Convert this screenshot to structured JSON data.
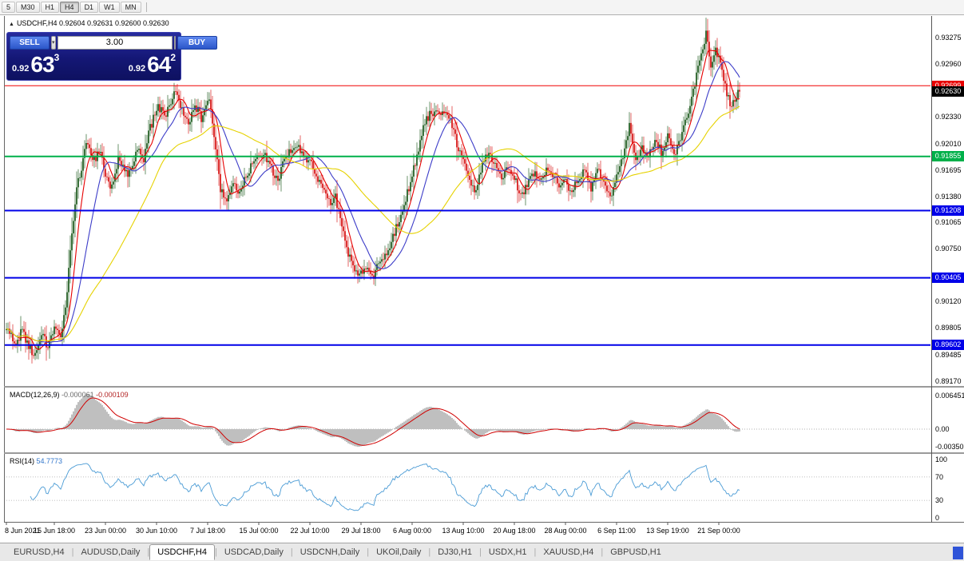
{
  "window": {
    "toolbar_timeframes": [
      "5",
      "M30",
      "H1",
      "H4",
      "D1",
      "W1",
      "MN"
    ],
    "active_timeframe": "H4"
  },
  "icons": {
    "collapse_arrow": "▲",
    "chevron_down": "▾",
    "spinner_up": "▲",
    "spinner_down": "▼"
  },
  "chart_header": {
    "title": "USDCHF,H4 0.92604 0.92631 0.92600 0.92630"
  },
  "trade_panel": {
    "sell_button": "SELL",
    "buy_button": "BUY",
    "volume": "3.00",
    "sell_price_prefix": "0.92",
    "sell_price_big": "63",
    "sell_price_sup": "3",
    "buy_price_prefix": "0.92",
    "buy_price_big": "64",
    "buy_price_sup": "2"
  },
  "price_axis": {
    "ticks": [
      {
        "label": "0.93275",
        "price": 0.93275
      },
      {
        "label": "0.92960",
        "price": 0.9296
      },
      {
        "label": "0.92330",
        "price": 0.9233
      },
      {
        "label": "0.92010",
        "price": 0.9201
      },
      {
        "label": "0.91695",
        "price": 0.91695
      },
      {
        "label": "0.91380",
        "price": 0.9138
      },
      {
        "label": "0.91065",
        "price": 0.91065
      },
      {
        "label": "0.90750",
        "price": 0.9075
      },
      {
        "label": "0.90120",
        "price": 0.9012
      },
      {
        "label": "0.89805",
        "price": 0.89805
      },
      {
        "label": "0.89485",
        "price": 0.89485
      },
      {
        "label": "0.89170",
        "price": 0.8917
      }
    ],
    "boxes": [
      {
        "label": "0.92699",
        "price": 0.92699,
        "color": "#e80000"
      },
      {
        "label": "0.92630",
        "price": 0.9263,
        "color": "#000000"
      },
      {
        "label": "0.91855",
        "price": 0.91855,
        "color": "#00b04a"
      },
      {
        "label": "0.91208",
        "price": 0.91208,
        "color": "#0000e8"
      },
      {
        "label": "0.90405",
        "price": 0.90405,
        "color": "#0000e8"
      },
      {
        "label": "0.89602",
        "price": 0.89602,
        "color": "#0000e8"
      }
    ]
  },
  "indicators": {
    "macd": {
      "name": "MACD(12,26,9)",
      "value_main": "-0.000061",
      "value_signal": "-0.000109",
      "axis_top": "0.006451",
      "axis_zero": "0.00",
      "axis_bottom": "-0.00350"
    },
    "rsi": {
      "name": "RSI(14)",
      "value": "54.7773",
      "axis": [
        "100",
        "70",
        "30",
        "0"
      ]
    }
  },
  "tab_bar": {
    "tabs": [
      "EURUSD,H4",
      "AUDUSD,Daily",
      "USDCHF,H4",
      "USDCAD,Daily",
      "USDCNH,Daily",
      "UKOil,Daily",
      "DJ30,H1",
      "USDX,H1",
      "XAUUSD,H4",
      "GBPUSD,H1"
    ],
    "active": "USDCHF,H4"
  },
  "chart_data": {
    "type": "candlestick",
    "symbol": "USDCHF",
    "timeframe": "H4",
    "title_ohlc": {
      "open": "0.92604",
      "high": "0.92631",
      "low": "0.92600",
      "close": "0.92630"
    },
    "quote": {
      "bid": 0.92633,
      "ask": 0.92642,
      "last": 0.9263
    },
    "bars": 460,
    "y_range": {
      "top_price": 0.93275,
      "bottom_price": 0.8917
    },
    "price_anchors": [
      [
        0,
        0.8978
      ],
      [
        6,
        0.8961
      ],
      [
        10,
        0.8979
      ],
      [
        14,
        0.8958
      ],
      [
        18,
        0.8946
      ],
      [
        22,
        0.8972
      ],
      [
        26,
        0.8959
      ],
      [
        30,
        0.8982
      ],
      [
        34,
        0.8965
      ],
      [
        37,
        0.9005
      ],
      [
        40,
        0.9075
      ],
      [
        44,
        0.9148
      ],
      [
        47,
        0.9172
      ],
      [
        50,
        0.9205
      ],
      [
        54,
        0.9176
      ],
      [
        58,
        0.9193
      ],
      [
        62,
        0.9166
      ],
      [
        66,
        0.9147
      ],
      [
        70,
        0.918
      ],
      [
        76,
        0.9161
      ],
      [
        82,
        0.9196
      ],
      [
        86,
        0.9182
      ],
      [
        90,
        0.9221
      ],
      [
        95,
        0.9243
      ],
      [
        100,
        0.9238
      ],
      [
        106,
        0.9268
      ],
      [
        110,
        0.9242
      ],
      [
        114,
        0.9226
      ],
      [
        118,
        0.9247
      ],
      [
        122,
        0.9232
      ],
      [
        127,
        0.9258
      ],
      [
        131,
        0.9199
      ],
      [
        134,
        0.9147
      ],
      [
        138,
        0.9131
      ],
      [
        142,
        0.9156
      ],
      [
        146,
        0.9141
      ],
      [
        150,
        0.9161
      ],
      [
        154,
        0.9176
      ],
      [
        158,
        0.9191
      ],
      [
        162,
        0.9186
      ],
      [
        166,
        0.9171
      ],
      [
        170,
        0.9157
      ],
      [
        174,
        0.9181
      ],
      [
        179,
        0.9196
      ],
      [
        183,
        0.9201
      ],
      [
        186,
        0.9181
      ],
      [
        190,
        0.9186
      ],
      [
        194,
        0.9161
      ],
      [
        198,
        0.9151
      ],
      [
        202,
        0.9131
      ],
      [
        206,
        0.9136
      ],
      [
        210,
        0.9101
      ],
      [
        214,
        0.9071
      ],
      [
        218,
        0.9051
      ],
      [
        222,
        0.9046
      ],
      [
        226,
        0.9053
      ],
      [
        230,
        0.9043
      ],
      [
        234,
        0.9061
      ],
      [
        238,
        0.9071
      ],
      [
        242,
        0.9091
      ],
      [
        246,
        0.9111
      ],
      [
        250,
        0.9136
      ],
      [
        254,
        0.9161
      ],
      [
        258,
        0.9196
      ],
      [
        262,
        0.9226
      ],
      [
        266,
        0.9238
      ],
      [
        270,
        0.9234
      ],
      [
        274,
        0.9241
      ],
      [
        278,
        0.9226
      ],
      [
        282,
        0.9201
      ],
      [
        286,
        0.9181
      ],
      [
        290,
        0.9156
      ],
      [
        294,
        0.9141
      ],
      [
        298,
        0.9176
      ],
      [
        302,
        0.9191
      ],
      [
        306,
        0.9176
      ],
      [
        310,
        0.9161
      ],
      [
        314,
        0.9171
      ],
      [
        318,
        0.9161
      ],
      [
        322,
        0.9136
      ],
      [
        326,
        0.9151
      ],
      [
        330,
        0.9166
      ],
      [
        334,
        0.9156
      ],
      [
        338,
        0.9171
      ],
      [
        342,
        0.9161
      ],
      [
        346,
        0.9151
      ],
      [
        350,
        0.9156
      ],
      [
        354,
        0.9141
      ],
      [
        358,
        0.9161
      ],
      [
        362,
        0.9171
      ],
      [
        366,
        0.9146
      ],
      [
        370,
        0.9166
      ],
      [
        374,
        0.9161
      ],
      [
        378,
        0.9136
      ],
      [
        382,
        0.9161
      ],
      [
        386,
        0.9186
      ],
      [
        390,
        0.9221
      ],
      [
        394,
        0.9181
      ],
      [
        398,
        0.9196
      ],
      [
        402,
        0.9186
      ],
      [
        406,
        0.9206
      ],
      [
        410,
        0.9191
      ],
      [
        414,
        0.9211
      ],
      [
        418,
        0.9186
      ],
      [
        422,
        0.9206
      ],
      [
        426,
        0.9231
      ],
      [
        430,
        0.9261
      ],
      [
        434,
        0.9301
      ],
      [
        438,
        0.9331
      ],
      [
        441,
        0.9291
      ],
      [
        444,
        0.9311
      ],
      [
        446,
        0.9301
      ],
      [
        450,
        0.9271
      ],
      [
        453,
        0.9246
      ],
      [
        456,
        0.9256
      ],
      [
        459,
        0.9263
      ]
    ],
    "hlines": [
      {
        "price": 0.92699,
        "color": "#f00000",
        "width": 1
      },
      {
        "price": 0.91855,
        "color": "#00b04a",
        "width": 2
      },
      {
        "price": 0.91208,
        "color": "#0000e8",
        "width": 2
      },
      {
        "price": 0.90405,
        "color": "#0000e8",
        "width": 2
      },
      {
        "price": 0.89602,
        "color": "#0000e8",
        "width": 2
      }
    ],
    "moving_averages": [
      {
        "period": 8,
        "color": "#e60000"
      },
      {
        "period": 21,
        "color": "#3c3cc8"
      },
      {
        "period": 60,
        "color": "#e6d200"
      }
    ],
    "colors": {
      "bull": "#0b4d0b",
      "bear": "#d40000",
      "macd_hist": "#bfbfbf",
      "macd_signal": "#d00000",
      "rsi_line": "#4a9bd5"
    },
    "macd": {
      "fast": 12,
      "slow": 26,
      "signal": 9,
      "current_main": -6.1e-05,
      "current_signal": -0.000109
    },
    "rsi": {
      "period": 14,
      "current": 54.7773
    },
    "time_labels": [
      {
        "label": "8 Jun 2021",
        "bar": 0
      },
      {
        "label": "15 Jun 18:00",
        "bar": 30
      },
      {
        "label": "23 Jun 00:00",
        "bar": 62
      },
      {
        "label": "30 Jun 10:00",
        "bar": 94
      },
      {
        "label": "7 Jul 18:00",
        "bar": 126
      },
      {
        "label": "15 Jul 00:00",
        "bar": 158
      },
      {
        "label": "22 Jul 10:00",
        "bar": 190
      },
      {
        "label": "29 Jul 18:00",
        "bar": 222
      },
      {
        "label": "6 Aug 00:00",
        "bar": 254
      },
      {
        "label": "13 Aug 10:00",
        "bar": 286
      },
      {
        "label": "20 Aug 18:00",
        "bar": 318
      },
      {
        "label": "28 Aug 00:00",
        "bar": 350
      },
      {
        "label": "6 Sep 11:00",
        "bar": 382
      },
      {
        "label": "13 Sep 19:00",
        "bar": 414
      },
      {
        "label": "21 Sep 00:00",
        "bar": 446
      }
    ]
  }
}
